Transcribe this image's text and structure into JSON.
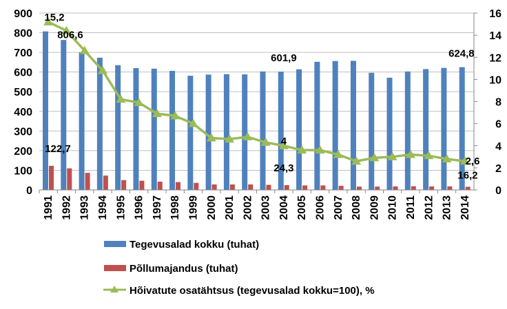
{
  "chart_data": {
    "type": "bar+line",
    "categories": [
      "1991",
      "1992",
      "1993",
      "1994",
      "1995",
      "1996",
      "1997",
      "1998",
      "1999",
      "2000",
      "2001",
      "2002",
      "2003",
      "2004",
      "2005",
      "2006",
      "2007",
      "2008",
      "2009",
      "2010",
      "2011",
      "2012",
      "2013",
      "2014"
    ],
    "series": [
      {
        "name": "Tegevusalad kokku (tuhat)",
        "type": "bar",
        "axis": "left",
        "color": "#4F81BD",
        "values": [
          806.6,
          763,
          700,
          673,
          635,
          620,
          617,
          606,
          581,
          587,
          589,
          588,
          603,
          601.9,
          614,
          652,
          656,
          657,
          596,
          571,
          603,
          615,
          621,
          624.8
        ]
      },
      {
        "name": "Põllumajandus (tuhat)",
        "type": "bar",
        "axis": "left",
        "color": "#C0504D",
        "values": [
          122.7,
          110,
          87,
          73,
          50,
          47,
          42,
          40,
          36,
          28,
          28,
          28,
          26,
          24.3,
          23,
          23,
          21,
          17,
          17,
          18,
          19,
          18,
          18,
          16.2
        ]
      },
      {
        "name": "Hõivatute osatähtsus (tegevusalad kokku=100), %",
        "type": "line",
        "axis": "right",
        "color": "#9BBB59",
        "marker": "triangle",
        "values": [
          15.2,
          14.4,
          12.6,
          10.8,
          8.2,
          7.9,
          6.9,
          6.7,
          6.0,
          4.7,
          4.6,
          4.8,
          4.3,
          4.0,
          3.6,
          3.6,
          3.2,
          2.6,
          2.9,
          3.0,
          3.2,
          3.1,
          2.8,
          2.6
        ]
      }
    ],
    "data_labels": [
      {
        "series": 0,
        "index": 0,
        "text": "806,6"
      },
      {
        "series": 2,
        "index": 0,
        "text": "15,2"
      },
      {
        "series": 1,
        "index": 0,
        "text": "122,7"
      },
      {
        "series": 0,
        "index": 13,
        "text": "601,9"
      },
      {
        "series": 2,
        "index": 13,
        "text": "4"
      },
      {
        "series": 1,
        "index": 13,
        "text": "24,3"
      },
      {
        "series": 0,
        "index": 23,
        "text": "624,8"
      },
      {
        "series": 2,
        "index": 23,
        "text": "2,6"
      },
      {
        "series": 1,
        "index": 23,
        "text": "16,2"
      }
    ],
    "y_left": {
      "min": 0,
      "max": 900,
      "ticks": [
        "0",
        "100",
        "200",
        "300",
        "400",
        "500",
        "600",
        "700",
        "800",
        "900"
      ]
    },
    "y_right": {
      "min": 0,
      "max": 16,
      "ticks": [
        "0",
        "2",
        "4",
        "6",
        "8",
        "10",
        "12",
        "14",
        "16"
      ]
    },
    "grid": true,
    "legend_position": "bottom",
    "title": "",
    "xlabel": "",
    "ylabel": ""
  }
}
